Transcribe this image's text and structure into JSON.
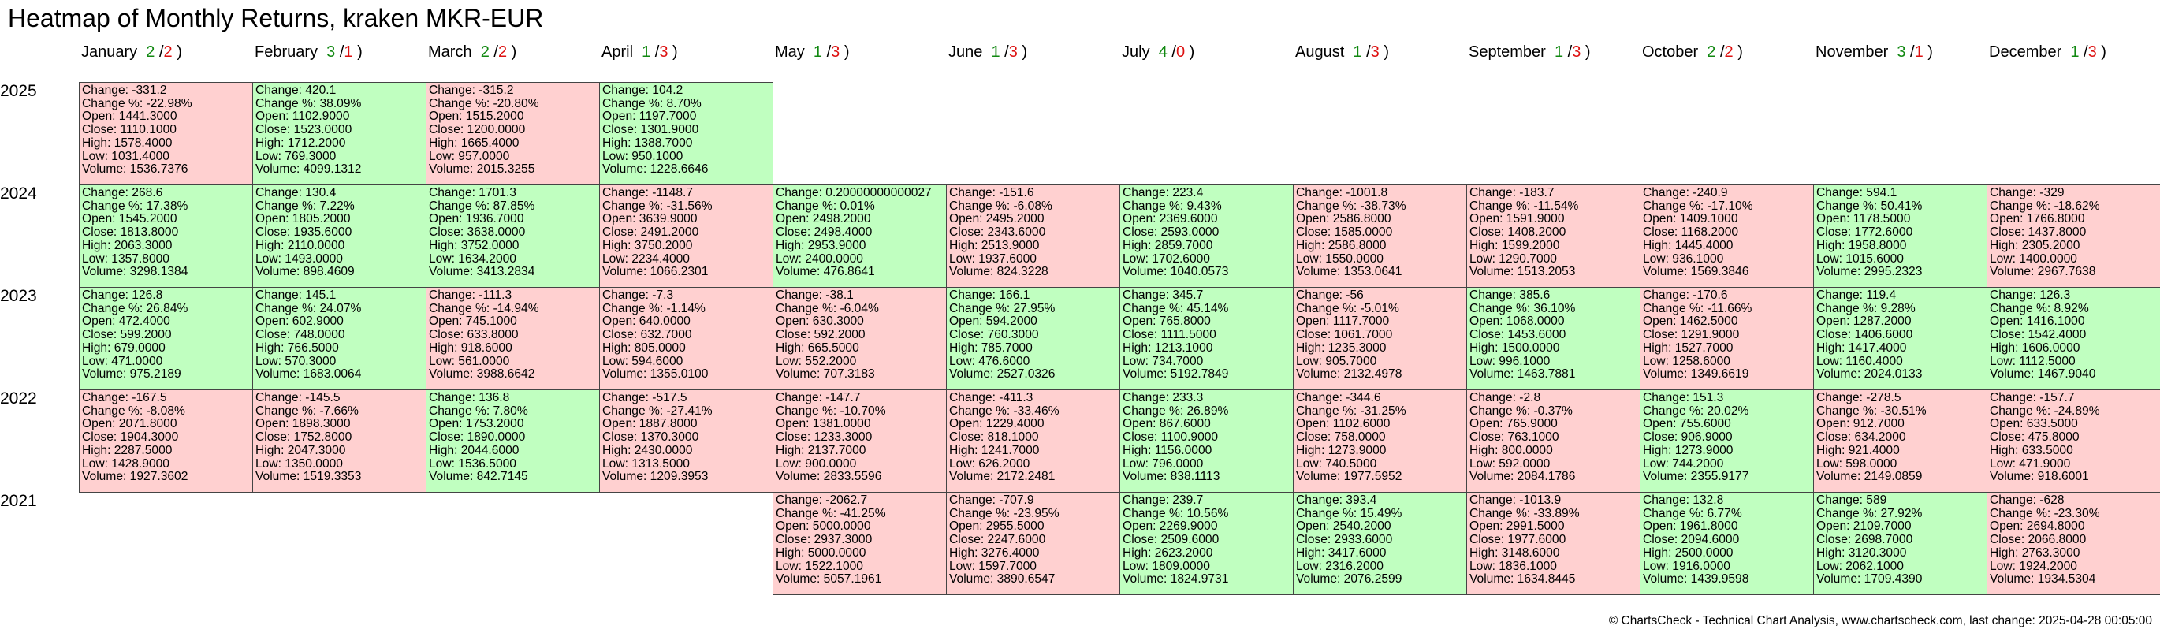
{
  "title": "Heatmap of Monthly Returns, kraken MKR-EUR",
  "footer": "© ChartsCheck - Technical Chart Analysis, www.chartscheck.com, last change: 2025-04-28 00:05:00",
  "colors": {
    "positive": "#c0ffc0",
    "negative": "#ffd0d0",
    "up_count": "#118811",
    "down_count": "#dd1111",
    "border": "#444444"
  },
  "field_labels": {
    "change": "Change: ",
    "change_pct": "Change %: ",
    "open": "Open: ",
    "close": "Close: ",
    "high": "High: ",
    "low": "Low: ",
    "volume": "Volume: "
  },
  "chart_data": {
    "type": "heatmap",
    "months": [
      {
        "name": "January",
        "up": "2",
        "down": "2"
      },
      {
        "name": "February",
        "up": "3",
        "down": "1"
      },
      {
        "name": "March",
        "up": "2",
        "down": "2"
      },
      {
        "name": "April",
        "up": "1",
        "down": "3"
      },
      {
        "name": "May",
        "up": "1",
        "down": "3"
      },
      {
        "name": "June",
        "up": "1",
        "down": "3"
      },
      {
        "name": "July",
        "up": "4",
        "down": "0"
      },
      {
        "name": "August",
        "up": "1",
        "down": "3"
      },
      {
        "name": "September",
        "up": "1",
        "down": "3"
      },
      {
        "name": "October",
        "up": "2",
        "down": "2"
      },
      {
        "name": "November",
        "up": "3",
        "down": "1"
      },
      {
        "name": "December",
        "up": "1",
        "down": "3"
      }
    ],
    "years": [
      "2025",
      "2024",
      "2023",
      "2022",
      "2021"
    ],
    "cells": [
      {
        "year": "2025",
        "month": 0,
        "change": "-331.2",
        "change_pct": "-22.98%",
        "open": "1441.3000",
        "close": "1110.1000",
        "high": "1578.4000",
        "low": "1031.4000",
        "volume": "1536.7376"
      },
      {
        "year": "2025",
        "month": 1,
        "change": "420.1",
        "change_pct": "38.09%",
        "open": "1102.9000",
        "close": "1523.0000",
        "high": "1712.2000",
        "low": "769.3000",
        "volume": "4099.1312"
      },
      {
        "year": "2025",
        "month": 2,
        "change": "-315.2",
        "change_pct": "-20.80%",
        "open": "1515.2000",
        "close": "1200.0000",
        "high": "1665.4000",
        "low": "957.0000",
        "volume": "2015.3255"
      },
      {
        "year": "2025",
        "month": 3,
        "change": "104.2",
        "change_pct": "8.70%",
        "open": "1197.7000",
        "close": "1301.9000",
        "high": "1388.7000",
        "low": "950.1000",
        "volume": "1228.6646"
      },
      {
        "year": "2024",
        "month": 0,
        "change": "268.6",
        "change_pct": "17.38%",
        "open": "1545.2000",
        "close": "1813.8000",
        "high": "2063.3000",
        "low": "1357.8000",
        "volume": "3298.1384"
      },
      {
        "year": "2024",
        "month": 1,
        "change": "130.4",
        "change_pct": "7.22%",
        "open": "1805.2000",
        "close": "1935.6000",
        "high": "2110.0000",
        "low": "1493.0000",
        "volume": "898.4609"
      },
      {
        "year": "2024",
        "month": 2,
        "change": "1701.3",
        "change_pct": "87.85%",
        "open": "1936.7000",
        "close": "3638.0000",
        "high": "3752.0000",
        "low": "1634.2000",
        "volume": "3413.2834"
      },
      {
        "year": "2024",
        "month": 3,
        "change": "-1148.7",
        "change_pct": "-31.56%",
        "open": "3639.9000",
        "close": "2491.2000",
        "high": "3750.2000",
        "low": "2234.4000",
        "volume": "1066.2301"
      },
      {
        "year": "2024",
        "month": 4,
        "change": "0.20000000000027",
        "change_pct": "0.01%",
        "open": "2498.2000",
        "close": "2498.4000",
        "high": "2953.9000",
        "low": "2400.0000",
        "volume": "476.8641"
      },
      {
        "year": "2024",
        "month": 5,
        "change": "-151.6",
        "change_pct": "-6.08%",
        "open": "2495.2000",
        "close": "2343.6000",
        "high": "2513.9000",
        "low": "1937.6000",
        "volume": "824.3228"
      },
      {
        "year": "2024",
        "month": 6,
        "change": "223.4",
        "change_pct": "9.43%",
        "open": "2369.6000",
        "close": "2593.0000",
        "high": "2859.7000",
        "low": "1702.6000",
        "volume": "1040.0573"
      },
      {
        "year": "2024",
        "month": 7,
        "change": "-1001.8",
        "change_pct": "-38.73%",
        "open": "2586.8000",
        "close": "1585.0000",
        "high": "2586.8000",
        "low": "1550.0000",
        "volume": "1353.0641"
      },
      {
        "year": "2024",
        "month": 8,
        "change": "-183.7",
        "change_pct": "-11.54%",
        "open": "1591.9000",
        "close": "1408.2000",
        "high": "1599.2000",
        "low": "1290.7000",
        "volume": "1513.2053"
      },
      {
        "year": "2024",
        "month": 9,
        "change": "-240.9",
        "change_pct": "-17.10%",
        "open": "1409.1000",
        "close": "1168.2000",
        "high": "1445.4000",
        "low": "936.1000",
        "volume": "1569.3846"
      },
      {
        "year": "2024",
        "month": 10,
        "change": "594.1",
        "change_pct": "50.41%",
        "open": "1178.5000",
        "close": "1772.6000",
        "high": "1958.8000",
        "low": "1015.6000",
        "volume": "2995.2323"
      },
      {
        "year": "2024",
        "month": 11,
        "change": "-329",
        "change_pct": "-18.62%",
        "open": "1766.8000",
        "close": "1437.8000",
        "high": "2305.2000",
        "low": "1400.0000",
        "volume": "2967.7638"
      },
      {
        "year": "2023",
        "month": 0,
        "change": "126.8",
        "change_pct": "26.84%",
        "open": "472.4000",
        "close": "599.2000",
        "high": "679.0000",
        "low": "471.0000",
        "volume": "975.2189"
      },
      {
        "year": "2023",
        "month": 1,
        "change": "145.1",
        "change_pct": "24.07%",
        "open": "602.9000",
        "close": "748.0000",
        "high": "766.5000",
        "low": "570.3000",
        "volume": "1683.0064"
      },
      {
        "year": "2023",
        "month": 2,
        "change": "-111.3",
        "change_pct": "-14.94%",
        "open": "745.1000",
        "close": "633.8000",
        "high": "918.6000",
        "low": "561.0000",
        "volume": "3988.6642"
      },
      {
        "year": "2023",
        "month": 3,
        "change": "-7.3",
        "change_pct": "-1.14%",
        "open": "640.0000",
        "close": "632.7000",
        "high": "805.0000",
        "low": "594.6000",
        "volume": "1355.0100"
      },
      {
        "year": "2023",
        "month": 4,
        "change": "-38.1",
        "change_pct": "-6.04%",
        "open": "630.3000",
        "close": "592.2000",
        "high": "665.5000",
        "low": "552.2000",
        "volume": "707.3183"
      },
      {
        "year": "2023",
        "month": 5,
        "change": "166.1",
        "change_pct": "27.95%",
        "open": "594.2000",
        "close": "760.3000",
        "high": "785.7000",
        "low": "476.6000",
        "volume": "2527.0326"
      },
      {
        "year": "2023",
        "month": 6,
        "change": "345.7",
        "change_pct": "45.14%",
        "open": "765.8000",
        "close": "1111.5000",
        "high": "1213.1000",
        "low": "734.7000",
        "volume": "5192.7849"
      },
      {
        "year": "2023",
        "month": 7,
        "change": "-56",
        "change_pct": "-5.01%",
        "open": "1117.7000",
        "close": "1061.7000",
        "high": "1235.3000",
        "low": "905.7000",
        "volume": "2132.4978"
      },
      {
        "year": "2023",
        "month": 8,
        "change": "385.6",
        "change_pct": "36.10%",
        "open": "1068.0000",
        "close": "1453.6000",
        "high": "1500.0000",
        "low": "996.1000",
        "volume": "1463.7881"
      },
      {
        "year": "2023",
        "month": 9,
        "change": "-170.6",
        "change_pct": "-11.66%",
        "open": "1462.5000",
        "close": "1291.9000",
        "high": "1527.7000",
        "low": "1258.6000",
        "volume": "1349.6619"
      },
      {
        "year": "2023",
        "month": 10,
        "change": "119.4",
        "change_pct": "9.28%",
        "open": "1287.2000",
        "close": "1406.6000",
        "high": "1417.4000",
        "low": "1160.4000",
        "volume": "2024.0133"
      },
      {
        "year": "2023",
        "month": 11,
        "change": "126.3",
        "change_pct": "8.92%",
        "open": "1416.1000",
        "close": "1542.4000",
        "high": "1606.0000",
        "low": "1112.5000",
        "volume": "1467.9040"
      },
      {
        "year": "2022",
        "month": 0,
        "change": "-167.5",
        "change_pct": "-8.08%",
        "open": "2071.8000",
        "close": "1904.3000",
        "high": "2287.5000",
        "low": "1428.9000",
        "volume": "1927.3602"
      },
      {
        "year": "2022",
        "month": 1,
        "change": "-145.5",
        "change_pct": "-7.66%",
        "open": "1898.3000",
        "close": "1752.8000",
        "high": "2047.3000",
        "low": "1350.0000",
        "volume": "1519.3353"
      },
      {
        "year": "2022",
        "month": 2,
        "change": "136.8",
        "change_pct": "7.80%",
        "open": "1753.2000",
        "close": "1890.0000",
        "high": "2044.6000",
        "low": "1536.5000",
        "volume": "842.7145"
      },
      {
        "year": "2022",
        "month": 3,
        "change": "-517.5",
        "change_pct": "-27.41%",
        "open": "1887.8000",
        "close": "1370.3000",
        "high": "2430.0000",
        "low": "1313.5000",
        "volume": "1209.3953"
      },
      {
        "year": "2022",
        "month": 4,
        "change": "-147.7",
        "change_pct": "-10.70%",
        "open": "1381.0000",
        "close": "1233.3000",
        "high": "2137.7000",
        "low": "900.0000",
        "volume": "2833.5596"
      },
      {
        "year": "2022",
        "month": 5,
        "change": "-411.3",
        "change_pct": "-33.46%",
        "open": "1229.4000",
        "close": "818.1000",
        "high": "1241.7000",
        "low": "626.2000",
        "volume": "2172.2481"
      },
      {
        "year": "2022",
        "month": 6,
        "change": "233.3",
        "change_pct": "26.89%",
        "open": "867.6000",
        "close": "1100.9000",
        "high": "1156.0000",
        "low": "796.0000",
        "volume": "838.1113"
      },
      {
        "year": "2022",
        "month": 7,
        "change": "-344.6",
        "change_pct": "-31.25%",
        "open": "1102.6000",
        "close": "758.0000",
        "high": "1273.9000",
        "low": "740.5000",
        "volume": "1977.5952"
      },
      {
        "year": "2022",
        "month": 8,
        "change": "-2.8",
        "change_pct": "-0.37%",
        "open": "765.9000",
        "close": "763.1000",
        "high": "800.0000",
        "low": "592.0000",
        "volume": "2084.1786"
      },
      {
        "year": "2022",
        "month": 9,
        "change": "151.3",
        "change_pct": "20.02%",
        "open": "755.6000",
        "close": "906.9000",
        "high": "1273.9000",
        "low": "744.2000",
        "volume": "2355.9177"
      },
      {
        "year": "2022",
        "month": 10,
        "change": "-278.5",
        "change_pct": "-30.51%",
        "open": "912.7000",
        "close": "634.2000",
        "high": "921.4000",
        "low": "598.0000",
        "volume": "2149.0859"
      },
      {
        "year": "2022",
        "month": 11,
        "change": "-157.7",
        "change_pct": "-24.89%",
        "open": "633.5000",
        "close": "475.8000",
        "high": "633.5000",
        "low": "471.9000",
        "volume": "918.6001"
      },
      {
        "year": "2021",
        "month": 4,
        "change": "-2062.7",
        "change_pct": "-41.25%",
        "open": "5000.0000",
        "close": "2937.3000",
        "high": "5000.0000",
        "low": "1522.1000",
        "volume": "5057.1961"
      },
      {
        "year": "2021",
        "month": 5,
        "change": "-707.9",
        "change_pct": "-23.95%",
        "open": "2955.5000",
        "close": "2247.6000",
        "high": "3276.4000",
        "low": "1597.7000",
        "volume": "3890.6547"
      },
      {
        "year": "2021",
        "month": 6,
        "change": "239.7",
        "change_pct": "10.56%",
        "open": "2269.9000",
        "close": "2509.6000",
        "high": "2623.2000",
        "low": "1809.0000",
        "volume": "1824.9731"
      },
      {
        "year": "2021",
        "month": 7,
        "change": "393.4",
        "change_pct": "15.49%",
        "open": "2540.2000",
        "close": "2933.6000",
        "high": "3417.6000",
        "low": "2316.2000",
        "volume": "2076.2599"
      },
      {
        "year": "2021",
        "month": 8,
        "change": "-1013.9",
        "change_pct": "-33.89%",
        "open": "2991.5000",
        "close": "1977.6000",
        "high": "3148.6000",
        "low": "1836.1000",
        "volume": "1634.8445"
      },
      {
        "year": "2021",
        "month": 9,
        "change": "132.8",
        "change_pct": "6.77%",
        "open": "1961.8000",
        "close": "2094.6000",
        "high": "2500.0000",
        "low": "1916.0000",
        "volume": "1439.9598"
      },
      {
        "year": "2021",
        "month": 10,
        "change": "589",
        "change_pct": "27.92%",
        "open": "2109.7000",
        "close": "2698.7000",
        "high": "3120.3000",
        "low": "2062.1000",
        "volume": "1709.4390"
      },
      {
        "year": "2021",
        "month": 11,
        "change": "-628",
        "change_pct": "-23.30%",
        "open": "2694.8000",
        "close": "2066.8000",
        "high": "2763.3000",
        "low": "1924.2000",
        "volume": "1934.5304"
      }
    ]
  }
}
